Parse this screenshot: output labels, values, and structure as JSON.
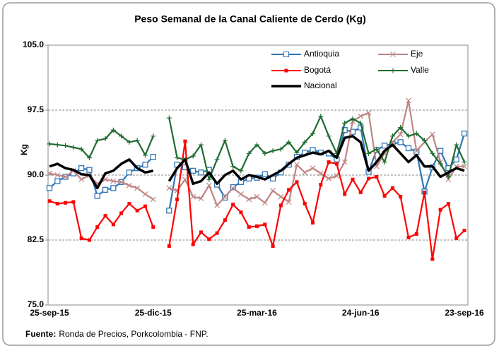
{
  "chart_data": {
    "type": "line",
    "title": "Peso Semanal de la Canal Caliente de Cerdo (Kg)",
    "y_label": "Kg",
    "source_label": "Fuente:",
    "source": "Ronda de Precios, Porkcolombia  - FNP.",
    "categories": [
      "25-sep-15",
      null,
      null,
      null,
      null,
      null,
      null,
      null,
      null,
      null,
      null,
      null,
      null,
      "25-dic-15",
      null,
      null,
      null,
      null,
      null,
      null,
      null,
      null,
      null,
      null,
      null,
      null,
      "25-mar-16",
      null,
      null,
      null,
      null,
      null,
      null,
      null,
      null,
      null,
      null,
      null,
      null,
      "24-jun-16",
      null,
      null,
      null,
      null,
      null,
      null,
      null,
      null,
      null,
      null,
      null,
      null,
      "23-sep-16"
    ],
    "ylim": [
      75,
      105
    ],
    "yticks": [
      {
        "value": 75,
        "label": "75.0"
      },
      {
        "value": 82.5,
        "label": "82.5"
      },
      {
        "value": 90,
        "label": "90.0"
      },
      {
        "value": 97.5,
        "label": "97.5"
      },
      {
        "value": 105,
        "label": "105.0"
      }
    ],
    "grid": true,
    "legend_position": "top-right",
    "series": [
      {
        "name": "Antioquia",
        "color": "#2e75b6",
        "marker": "square-open",
        "values": [
          88.5,
          89.3,
          89.8,
          90.2,
          90.8,
          90.6,
          87.6,
          88.3,
          88.5,
          89.2,
          90.3,
          90.8,
          91.2,
          92.1,
          null,
          85.9,
          91.2,
          90.9,
          90.5,
          90.3,
          90.6,
          88.9,
          87.4,
          88.6,
          89.2,
          89.6,
          89.7,
          90.1,
          89.6,
          90.3,
          91.2,
          92.1,
          92.6,
          92.9,
          92.6,
          92.5,
          91.8,
          95.2,
          95.0,
          95.5,
          90.4,
          92.9,
          93.4,
          93.6,
          93.8,
          93.1,
          92.7,
          88.1,
          90.9,
          92.8,
          90.8,
          91.8,
          94.8
        ]
      },
      {
        "name": "Eje",
        "color": "#c08585",
        "marker": "x",
        "values": [
          90.2,
          90.0,
          89.8,
          90.5,
          89.5,
          90.0,
          89.0,
          89.5,
          89.3,
          89.2,
          88.8,
          88.5,
          87.8,
          87.2,
          null,
          88.5,
          88.2,
          89.5,
          87.5,
          87.3,
          88.8,
          86.5,
          87.5,
          88.5,
          87.8,
          87.2,
          87.5,
          86.8,
          88.2,
          87.5,
          86.9,
          91.2,
          90.3,
          90.8,
          90.2,
          89.6,
          89.9,
          91.5,
          96.2,
          96.8,
          97.2,
          91.0,
          92.5,
          93.8,
          94.7,
          98.6,
          92.8,
          93.8,
          94.7,
          91.5,
          89.5,
          91.0,
          91.0
        ]
      },
      {
        "name": "Bogotá",
        "color": "#ff0000",
        "marker": "square",
        "values": [
          87.0,
          86.7,
          86.8,
          86.9,
          82.7,
          82.5,
          84.0,
          85.3,
          84.3,
          85.6,
          86.7,
          85.9,
          86.4,
          84.0,
          null,
          81.8,
          87.2,
          93.9,
          82.0,
          83.4,
          82.6,
          83.3,
          84.8,
          86.6,
          85.7,
          84.0,
          84.1,
          84.3,
          81.8,
          86.5,
          88.3,
          89.2,
          86.7,
          84.5,
          88.9,
          91.5,
          91.3,
          87.8,
          89.5,
          88.0,
          89.6,
          89.8,
          87.6,
          88.5,
          87.5,
          82.8,
          83.2,
          88.0,
          80.3,
          86.0,
          86.7,
          82.7,
          83.6
        ]
      },
      {
        "name": "Valle",
        "color": "#1e6b30",
        "marker": "plus",
        "values": [
          93.6,
          93.5,
          93.4,
          93.2,
          93.0,
          92.0,
          94.0,
          94.2,
          95.2,
          94.5,
          93.8,
          94.0,
          92.3,
          94.5,
          null,
          96.6,
          92.0,
          91.8,
          92.2,
          93.5,
          89.5,
          91.8,
          94.0,
          91.0,
          90.5,
          92.5,
          93.5,
          92.5,
          92.8,
          93.0,
          93.8,
          92.6,
          93.8,
          94.8,
          96.8,
          94.5,
          92.5,
          96.0,
          96.5,
          96.0,
          92.5,
          93.0,
          91.5,
          94.5,
          95.5,
          94.5,
          94.8,
          94.0,
          92.5,
          91.3,
          89.8,
          93.5,
          91.5
        ]
      },
      {
        "name": "Nacional",
        "color": "#000000",
        "marker": "none",
        "values": [
          91.0,
          91.3,
          90.8,
          90.6,
          90.1,
          90.0,
          88.5,
          90.2,
          90.5,
          91.3,
          91.8,
          90.8,
          90.3,
          90.5,
          null,
          89.3,
          90.8,
          91.8,
          89.0,
          89.3,
          90.3,
          89.0,
          90.0,
          90.5,
          89.5,
          90.0,
          89.8,
          89.5,
          90.0,
          90.5,
          91.3,
          92.0,
          92.3,
          92.6,
          92.4,
          92.8,
          92.0,
          94.3,
          94.5,
          93.8,
          90.5,
          91.5,
          92.8,
          93.5,
          92.5,
          91.5,
          92.3,
          91.0,
          91.0,
          89.8,
          90.3,
          90.8,
          90.5
        ]
      }
    ]
  }
}
